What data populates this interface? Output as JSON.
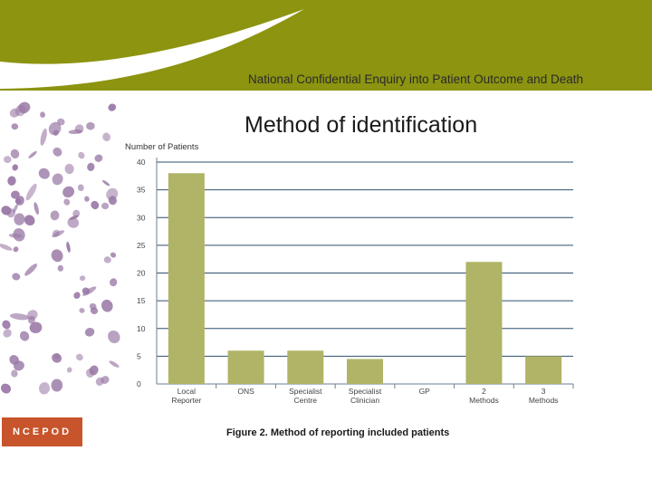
{
  "header": {
    "title": "National Confidential Enquiry into Patient Outcome and Death",
    "band_color": "#8c9410",
    "swoosh_color": "#ffffff"
  },
  "slide_title": "Method of identification",
  "figure_caption": "Figure 2. Method of reporting included patients",
  "logo": {
    "text": "NCEPOD",
    "color": "#c7542a"
  },
  "decoration": {
    "cells_icon": "red-blood-cells-illustration",
    "cell_color": "#9a79a6"
  },
  "chart_data": {
    "type": "bar",
    "ylabel": "Number of Patients",
    "xlabel": "",
    "ylim": [
      0,
      40
    ],
    "yticks": [
      0,
      5,
      10,
      15,
      20,
      25,
      30,
      35,
      40
    ],
    "grid": true,
    "bar_color": "#b0b466",
    "grid_color": "#2f4f6e",
    "categories": [
      [
        "Local",
        "Reporter"
      ],
      [
        "ONS"
      ],
      [
        "Specialist",
        "Centre"
      ],
      [
        "Specialist",
        "Clinician"
      ],
      [
        "GP"
      ],
      [
        "2",
        "Methods"
      ],
      [
        "3",
        "Methods"
      ]
    ],
    "values": [
      38,
      6,
      6,
      4.5,
      0,
      22,
      5
    ]
  }
}
